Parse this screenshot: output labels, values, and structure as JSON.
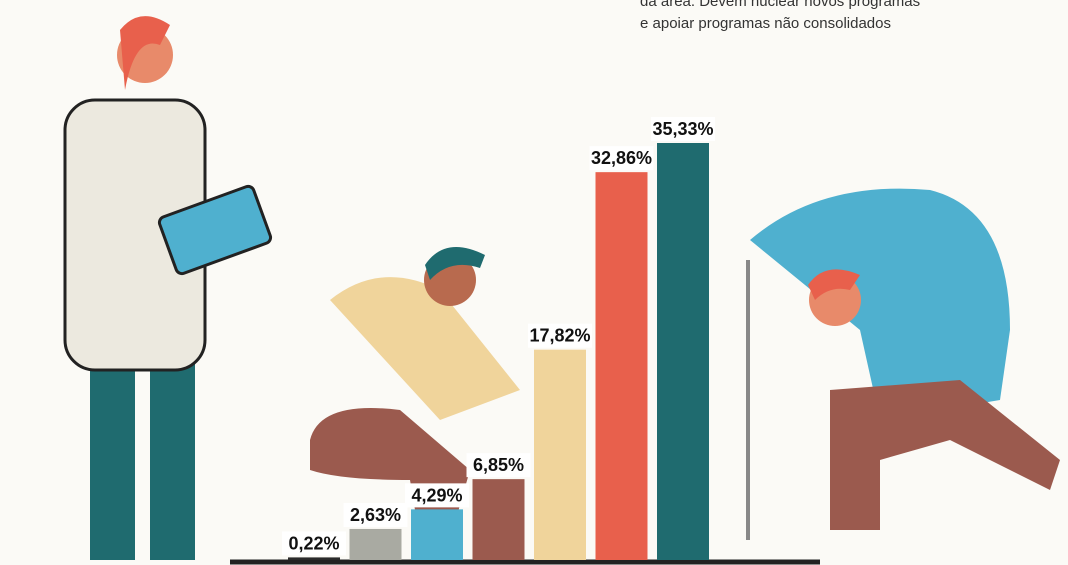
{
  "chart_data": {
    "type": "bar",
    "annotations": [
      "da área. Devem nuclear novos programas",
      "e apoiar programas não consolidados"
    ],
    "categories": [
      null,
      null,
      null,
      null,
      null,
      null,
      null
    ],
    "values": [
      0.22,
      2.63,
      4.29,
      6.85,
      17.82,
      32.86,
      35.33
    ],
    "value_labels": [
      "0,22%",
      "2,63%",
      "4,29%",
      "6,85%",
      "17,82%",
      "32,86%",
      "35,33%"
    ],
    "colors": [
      "#2a2a2a",
      "#a9aaa2",
      "#4fb0cf",
      "#9b5a4e",
      "#f0d49b",
      "#e8604c",
      "#1f6b6f"
    ]
  }
}
